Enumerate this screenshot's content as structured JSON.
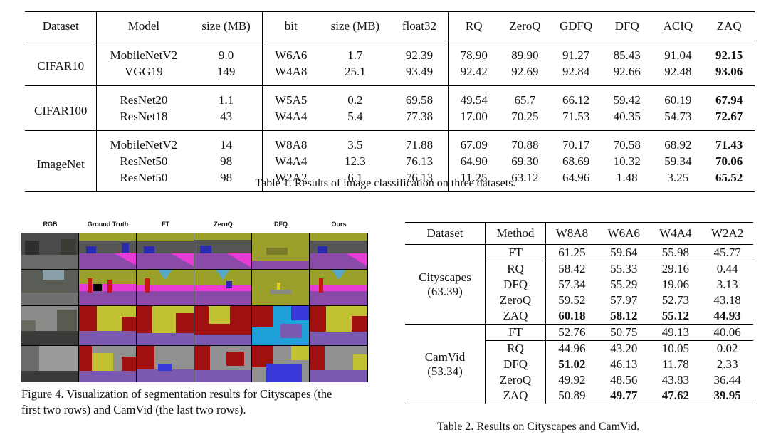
{
  "table1": {
    "headers": [
      "Dataset",
      "Model",
      "size (MB)",
      "bit",
      "size (MB)",
      "float32",
      "RQ",
      "ZeroQ",
      "GDFQ",
      "DFQ",
      "ACIQ",
      "ZAQ"
    ],
    "groups": [
      {
        "dataset": "CIFAR10",
        "rows": [
          [
            "MobileNetV2",
            "9.0",
            "W6A6",
            "1.7",
            "92.39",
            "78.90",
            "89.90",
            "91.27",
            "85.43",
            "91.04",
            "92.15"
          ],
          [
            "VGG19",
            "149",
            "W4A8",
            "25.1",
            "93.49",
            "92.42",
            "92.69",
            "92.84",
            "92.66",
            "92.48",
            "93.06"
          ]
        ]
      },
      {
        "dataset": "CIFAR100",
        "rows": [
          [
            "ResNet20",
            "1.1",
            "W5A5",
            "0.2",
            "69.58",
            "49.54",
            "65.7",
            "66.12",
            "59.42",
            "60.19",
            "67.94"
          ],
          [
            "ResNet18",
            "43",
            "W4A4",
            "5.4",
            "77.38",
            "17.00",
            "70.25",
            "71.53",
            "40.35",
            "54.73",
            "72.67"
          ]
        ]
      },
      {
        "dataset": "ImageNet",
        "rows": [
          [
            "MobileNetV2",
            "14",
            "W8A8",
            "3.5",
            "71.88",
            "67.09",
            "70.88",
            "70.17",
            "70.58",
            "68.92",
            "71.43"
          ],
          [
            "ResNet50",
            "98",
            "W4A4",
            "12.3",
            "76.13",
            "64.90",
            "69.30",
            "68.69",
            "10.32",
            "59.34",
            "70.06"
          ],
          [
            "ResNet50",
            "98",
            "W2A2",
            "6.1",
            "76.13",
            "11.25",
            "63.12",
            "64.96",
            "1.48",
            "3.25",
            "65.52"
          ]
        ]
      }
    ],
    "caption": "Table 1. Results of image classification on three datasets."
  },
  "figure4": {
    "headers": [
      "RGB",
      "Ground Truth",
      "FT",
      "ZeroQ",
      "DFQ",
      "Ours"
    ],
    "caption_line1": "Figure 4. Visualization of segmentation results for Cityscapes (the",
    "caption_line2": "first two rows) and CamVid (the last two rows).",
    "colors": {
      "road": "#8a4aa8",
      "sidewalk": "#e83ad4",
      "building": "#555555",
      "vegetation": "#9aa02a",
      "sky": "#5aa8c8",
      "car": "#2a2ab0",
      "person": "#c81414",
      "pole": "#a0a0a0",
      "camvid_building": "#a01010",
      "camvid_tree": "#c0c030",
      "camvid_road": "#7a5ab0",
      "camvid_sidewalk": "#3838d8",
      "camvid_sky": "#909090",
      "camvid_noise": "#20a0d8",
      "rgb_dark": "#3a3a38"
    }
  },
  "table2": {
    "headers": [
      "Dataset",
      "Method",
      "W8A8",
      "W6A6",
      "W4A4",
      "W2A2"
    ],
    "groups": [
      {
        "dataset": "Cityscapes",
        "baseline": "(63.39)",
        "rows": [
          [
            "FT",
            "61.25",
            "59.64",
            "55.98",
            "45.77"
          ],
          [
            "RQ",
            "58.42",
            "55.33",
            "29.16",
            "0.44"
          ],
          [
            "DFQ",
            "57.34",
            "55.29",
            "19.06",
            "3.13"
          ],
          [
            "ZeroQ",
            "59.52",
            "57.97",
            "52.73",
            "43.18"
          ],
          [
            "ZAQ",
            "60.18",
            "58.12",
            "55.12",
            "44.93"
          ]
        ]
      },
      {
        "dataset": "CamVid",
        "baseline": "(53.34)",
        "rows": [
          [
            "FT",
            "52.76",
            "50.75",
            "49.13",
            "40.06"
          ],
          [
            "RQ",
            "44.96",
            "43.20",
            "10.05",
            "0.02"
          ],
          [
            "DFQ",
            "51.02",
            "46.13",
            "11.78",
            "2.33"
          ],
          [
            "ZeroQ",
            "49.92",
            "48.56",
            "43.83",
            "36.44"
          ],
          [
            "ZAQ",
            "50.89",
            "49.77",
            "47.62",
            "39.95"
          ]
        ]
      }
    ],
    "caption": "Table 2. Results on Cityscapes and CamVid."
  }
}
